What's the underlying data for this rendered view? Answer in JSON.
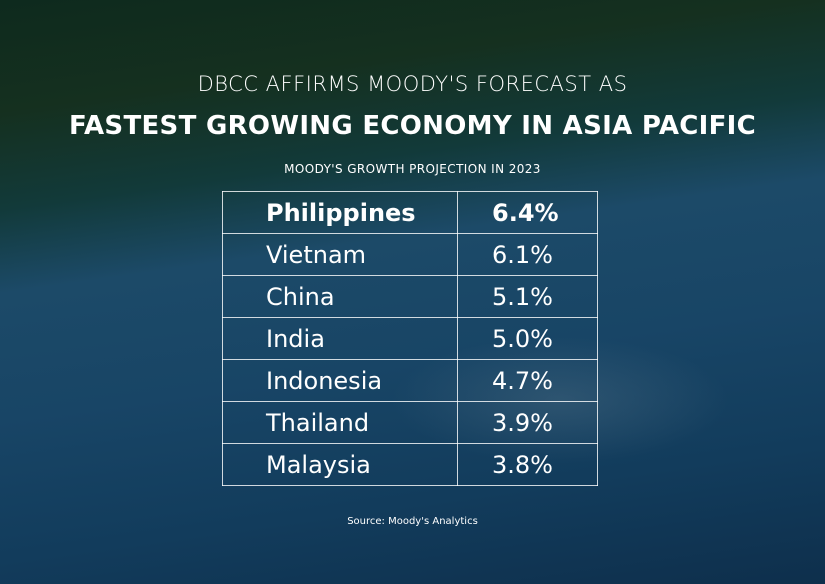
{
  "header": {
    "line1": "DBCC AFFIRMS MOODY'S FORECAST AS",
    "line2": "FASTEST GROWING ECONOMY IN ASIA PACIFIC",
    "subtitle": "MOODY'S GROWTH PROJECTION IN 2023"
  },
  "table": {
    "rows": [
      [
        "Philippines",
        "6.4%"
      ],
      [
        "Vietnam",
        "6.1%"
      ],
      [
        "China",
        "5.1%"
      ],
      [
        "India",
        "5.0%"
      ],
      [
        "Indonesia",
        "4.7%"
      ],
      [
        "Thailand",
        "3.9%"
      ],
      [
        "Malaysia",
        "3.8%"
      ]
    ]
  },
  "source": "Source: Moody's Analytics"
}
